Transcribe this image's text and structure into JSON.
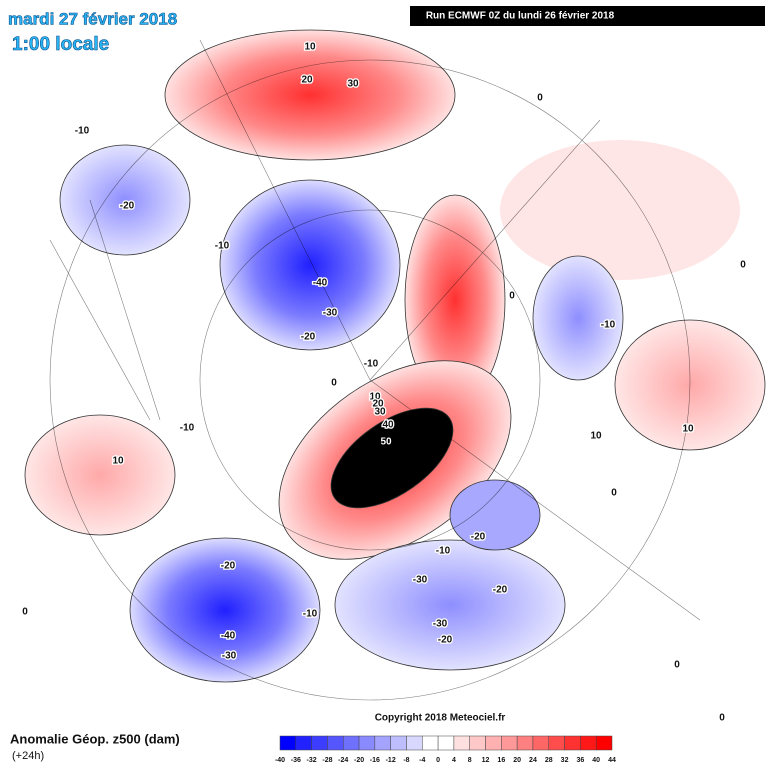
{
  "header": {
    "title": "mardi 27 février 2018",
    "subtitle": "1:00 locale",
    "run": "Run ECMWF 0Z du lundi 26 février 2018"
  },
  "footer": {
    "copyright": "Copyright 2018 Meteociel.fr",
    "variable": "Anomalie Géop. z500 (dam)",
    "lead": "(+24h)"
  },
  "legend": {
    "labels": [
      -40,
      -36,
      -32,
      -28,
      -24,
      -20,
      -16,
      -12,
      -8,
      -4,
      0,
      4,
      8,
      12,
      16,
      20,
      24,
      28,
      32,
      36,
      40,
      44
    ],
    "colors": [
      "#0000ff",
      "#2222ff",
      "#3d3dff",
      "#5656ff",
      "#7070ff",
      "#8a8aff",
      "#a4a4ff",
      "#bebeff",
      "#d8d8ff",
      "#ffffff",
      "#ffffff",
      "#ffe0e0",
      "#ffc8c8",
      "#ffb0b0",
      "#ff9898",
      "#ff8080",
      "#ff6666",
      "#ff4c4c",
      "#ff3232",
      "#ff1818",
      "#ff0000"
    ]
  },
  "contour_labels": [
    10,
    20,
    30,
    0,
    -10,
    -20,
    -10,
    -40,
    -30,
    -20,
    -10,
    0,
    0,
    -10,
    -10,
    10,
    20,
    30,
    40,
    50,
    10,
    10,
    0,
    0,
    10,
    -20,
    -10,
    -20,
    -30,
    -20,
    -40,
    -30,
    -10,
    -20,
    -30,
    0,
    0,
    0
  ]
}
